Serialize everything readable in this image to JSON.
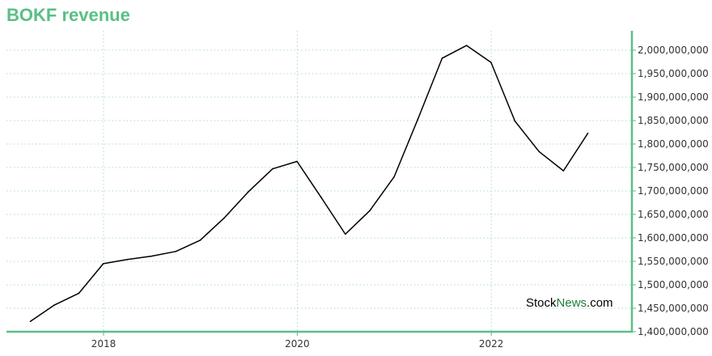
{
  "chart_data": {
    "type": "line",
    "title": "BOKF revenue",
    "xlabel": "",
    "ylabel": "",
    "x": [
      "2017-03-31",
      "2017-06-30",
      "2017-09-30",
      "2017-12-31",
      "2018-03-31",
      "2018-06-30",
      "2018-09-30",
      "2018-12-31",
      "2019-03-31",
      "2019-06-30",
      "2019-09-30",
      "2019-12-31",
      "2020-03-31",
      "2020-06-30",
      "2020-09-30",
      "2020-12-31",
      "2021-03-31",
      "2021-06-30",
      "2021-09-30",
      "2021-12-31",
      "2022-03-31",
      "2022-06-30",
      "2022-09-30",
      "2022-12-31"
    ],
    "series": [
      {
        "values": [
          1422000000,
          1457000000,
          1482000000,
          1545000000,
          1554000000,
          1561000000,
          1571000000,
          1595000000,
          1642000000,
          1698000000,
          1747000000,
          1763000000,
          1686000000,
          1608000000,
          1658000000,
          1730000000,
          1854000000,
          1983000000,
          2010000000,
          1974000000,
          1849000000,
          1784000000,
          1743000000,
          1823000000
        ]
      }
    ],
    "x_ticks": [
      "2018",
      "2020",
      "2022"
    ],
    "y_ticks": [
      "1,400,000,000",
      "1,450,000,000",
      "1,500,000,000",
      "1,550,000,000",
      "1,600,000,000",
      "1,650,000,000",
      "1,700,000,000",
      "1,750,000,000",
      "1,800,000,000",
      "1,850,000,000",
      "1,900,000,000",
      "1,950,000,000",
      "2,000,000,000"
    ],
    "ylim": [
      1400000000,
      2000000000
    ],
    "xlim": [
      "2016-12-31",
      "2023-06-15"
    ],
    "grid": true,
    "legend": "none",
    "colors": {
      "title": "#5abf86",
      "axis": "#5abf86",
      "grid": "#a9dcc0",
      "line": "#000000"
    }
  },
  "watermark": {
    "part1": "Stock",
    "part2": "News",
    "part3": ".com"
  }
}
